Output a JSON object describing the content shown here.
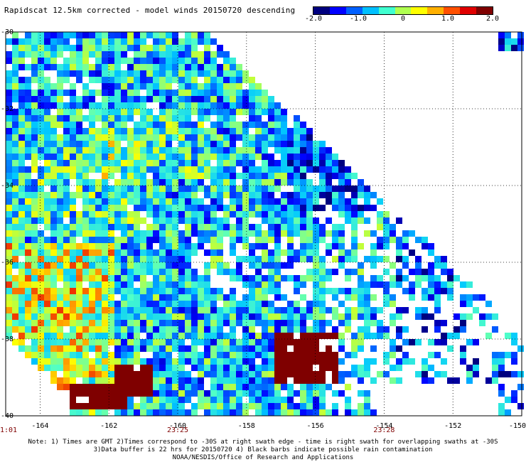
{
  "title": "Rapidscat 12.5km corrected - model winds 20150720 descending",
  "colorbar": {
    "ticks": [
      "-2.0",
      "-1.0",
      "0",
      "1.0",
      "2.0"
    ],
    "colors": [
      "#00007f",
      "#0000ff",
      "#0060ff",
      "#00c0ff",
      "#40ffd0",
      "#b0ff50",
      "#ffff00",
      "#ffb000",
      "#ff5000",
      "#e00000",
      "#7f0000"
    ]
  },
  "map": {
    "lon_min": -165,
    "lon_max": -150,
    "lat_top": -30,
    "lat_bottom": -40,
    "lon_ticks": [
      "-164",
      "-162",
      "-160",
      "-158",
      "-156",
      "-154",
      "-152",
      "-150"
    ],
    "lat_ticks": [
      "-30",
      "-32",
      "-34",
      "-36",
      "-38",
      "-40"
    ],
    "time_labels": [
      {
        "text": "1:01",
        "lon": -165
      },
      {
        "text": "23:25",
        "lon": -160
      },
      {
        "text": "23:28",
        "lon": -154
      }
    ],
    "high_anomaly_regions": [
      {
        "lon": [
          -163.2,
          -161.5
        ],
        "lat": [
          -39.8,
          -39.1
        ]
      },
      {
        "lon": [
          -161.9,
          -160.8
        ],
        "lat": [
          -39.5,
          -38.6
        ]
      },
      {
        "lon": [
          -157.2,
          -155.3
        ],
        "lat": [
          -39.2,
          -37.9
        ]
      }
    ]
  },
  "notes": [
    "Note: 1) Times are GMT 2)Times correspond to -30S at right swath edge - time is right swath for overlapping swaths at -30S",
    "3)Data buffer is 22 hrs for 20150720 4) Black barbs indicate possible rain contamination",
    "NOAA/NESDIS/Office of Research and Applications"
  ]
}
